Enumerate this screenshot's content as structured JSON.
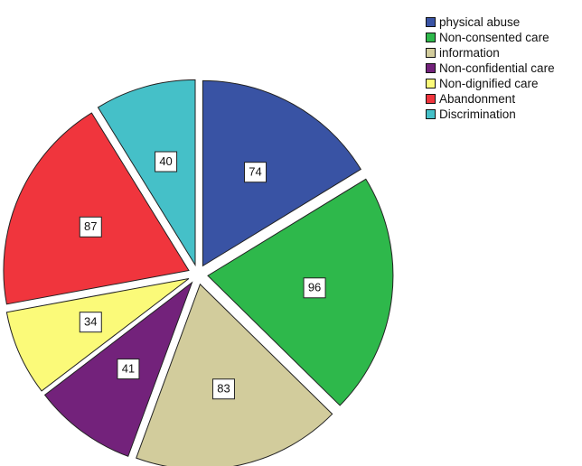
{
  "chart_data": {
    "type": "pie",
    "exploded": true,
    "start": "12 o'clock",
    "direction": "clockwise",
    "legend_position": "top-right",
    "categories": [
      "physical abuse",
      "Non-consented care",
      "information",
      "Non-confidential care",
      "Non-dignified care",
      "Abandonment",
      "Discrimination"
    ],
    "values": [
      74,
      96,
      83,
      41,
      34,
      87,
      40
    ],
    "colors": [
      "#3953a4",
      "#2eb84b",
      "#d2cc9c",
      "#73227b",
      "#fbfa79",
      "#f0353d",
      "#45c0c8"
    ]
  }
}
